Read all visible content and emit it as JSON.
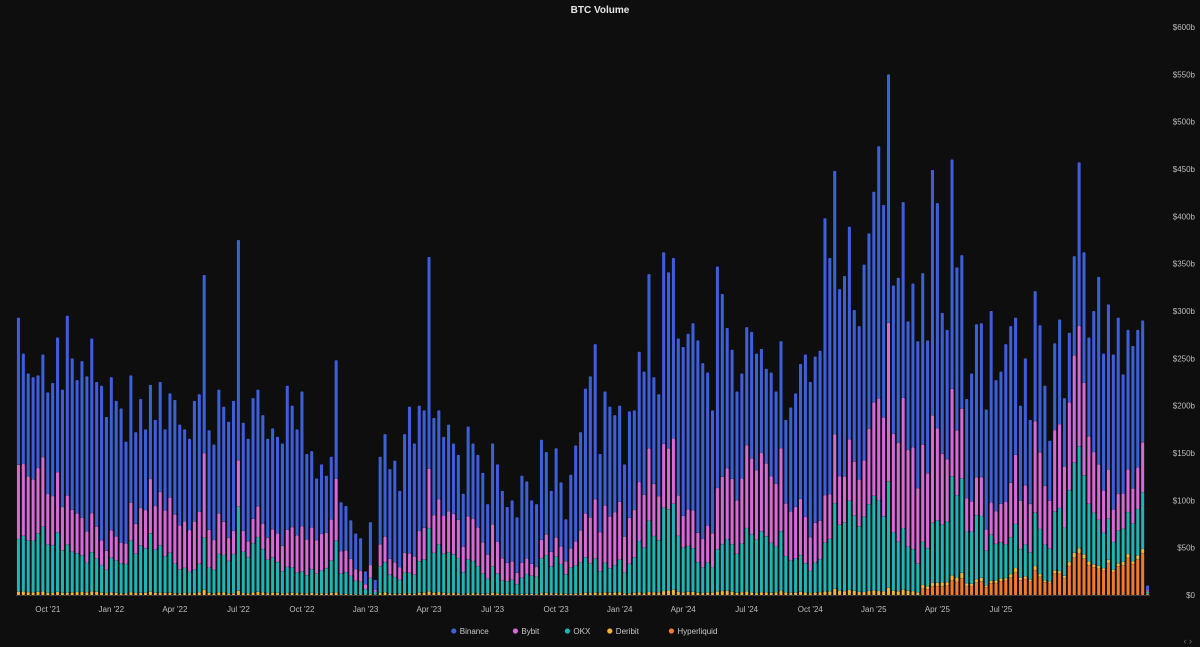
{
  "chart_data": {
    "type": "bar",
    "stacked": true,
    "title": "BTC Volume",
    "xlabel": "",
    "ylabel": "",
    "ylim": [
      0,
      600
    ],
    "y_unit_suffix": "b",
    "y_ticks": [
      "$0",
      "$50b",
      "$100b",
      "$150b",
      "$200b",
      "$250b",
      "$300b",
      "$350b",
      "$400b",
      "$450b",
      "$500b",
      "$550b",
      "$600b"
    ],
    "x_tick_labels": [
      "Oct '21",
      "Jan '22",
      "Apr '22",
      "Jul '22",
      "Oct '22",
      "Jan '23",
      "Apr '23",
      "Jul '23",
      "Oct '23",
      "Jan '24",
      "Apr '24",
      "Jul '24",
      "Oct '24",
      "Jan '25",
      "Apr '25",
      "Jul '25"
    ],
    "x_tick_week_index": [
      6,
      19,
      32,
      45,
      58,
      71,
      84,
      97,
      110,
      123,
      136,
      149,
      162,
      175,
      188,
      201
    ],
    "legend": "bottom-center",
    "series_names": [
      "Binance",
      "Bybit",
      "OKX",
      "Deribit",
      "Hyperliquid"
    ],
    "colors": {
      "Binance": "#3d5fd9",
      "Bybit": "#d66ad9",
      "OKX": "#1fb5b5",
      "Deribit": "#f0b43a",
      "Hyperliquid": "#f07a2e"
    },
    "series_order_bottom_to_top": [
      "Hyperliquid",
      "Deribit",
      "OKX",
      "Bybit",
      "Binance"
    ],
    "weekly_totals": [
      293,
      255,
      234,
      230,
      232,
      254,
      214,
      224,
      272,
      217,
      295,
      250,
      227,
      247,
      231,
      271,
      225,
      221,
      188,
      230,
      205,
      197,
      162,
      232,
      172,
      207,
      175,
      222,
      185,
      225,
      175,
      213,
      206,
      180,
      175,
      165,
      205,
      212,
      338,
      174,
      159,
      217,
      199,
      183,
      205,
      375,
      182,
      165,
      208,
      217,
      190,
      165,
      176,
      167,
      160,
      221,
      200,
      175,
      215,
      149,
      152,
      123,
      138,
      126,
      146,
      248,
      98,
      94,
      79,
      65,
      60,
      25,
      77,
      16,
      146,
      170,
      133,
      142,
      110,
      170,
      199,
      160,
      200,
      195,
      357,
      187,
      195,
      167,
      180,
      160,
      148,
      107,
      178,
      160,
      148,
      129,
      96,
      160,
      138,
      110,
      93,
      100,
      82,
      126,
      120,
      100,
      96,
      164,
      151,
      110,
      155,
      119,
      80,
      127,
      158,
      172,
      218,
      231,
      265,
      149,
      215,
      199,
      190,
      200,
      138,
      194,
      195,
      257,
      236,
      339,
      230,
      212,
      362,
      341,
      356,
      271,
      262,
      276,
      287,
      269,
      245,
      235,
      195,
      347,
      318,
      282,
      259,
      215,
      234,
      283,
      278,
      255,
      260,
      239,
      235,
      215,
      268,
      185,
      198,
      213,
      244,
      254,
      225,
      252,
      258,
      398,
      356,
      448,
      323,
      337,
      389,
      301,
      284,
      349,
      382,
      426,
      474,
      412,
      550,
      327,
      335,
      415,
      289,
      329,
      268,
      340,
      269,
      449,
      414,
      298,
      280,
      460,
      346,
      359,
      207,
      234,
      286,
      287,
      196,
      300,
      227,
      236,
      265,
      284,
      293,
      200,
      250,
      185,
      321,
      285,
      221,
      163,
      266,
      291,
      208,
      277,
      358,
      457,
      362,
      272,
      300,
      336,
      255,
      307,
      254,
      293,
      233,
      280,
      263,
      280,
      290,
      10
    ]
  }
}
